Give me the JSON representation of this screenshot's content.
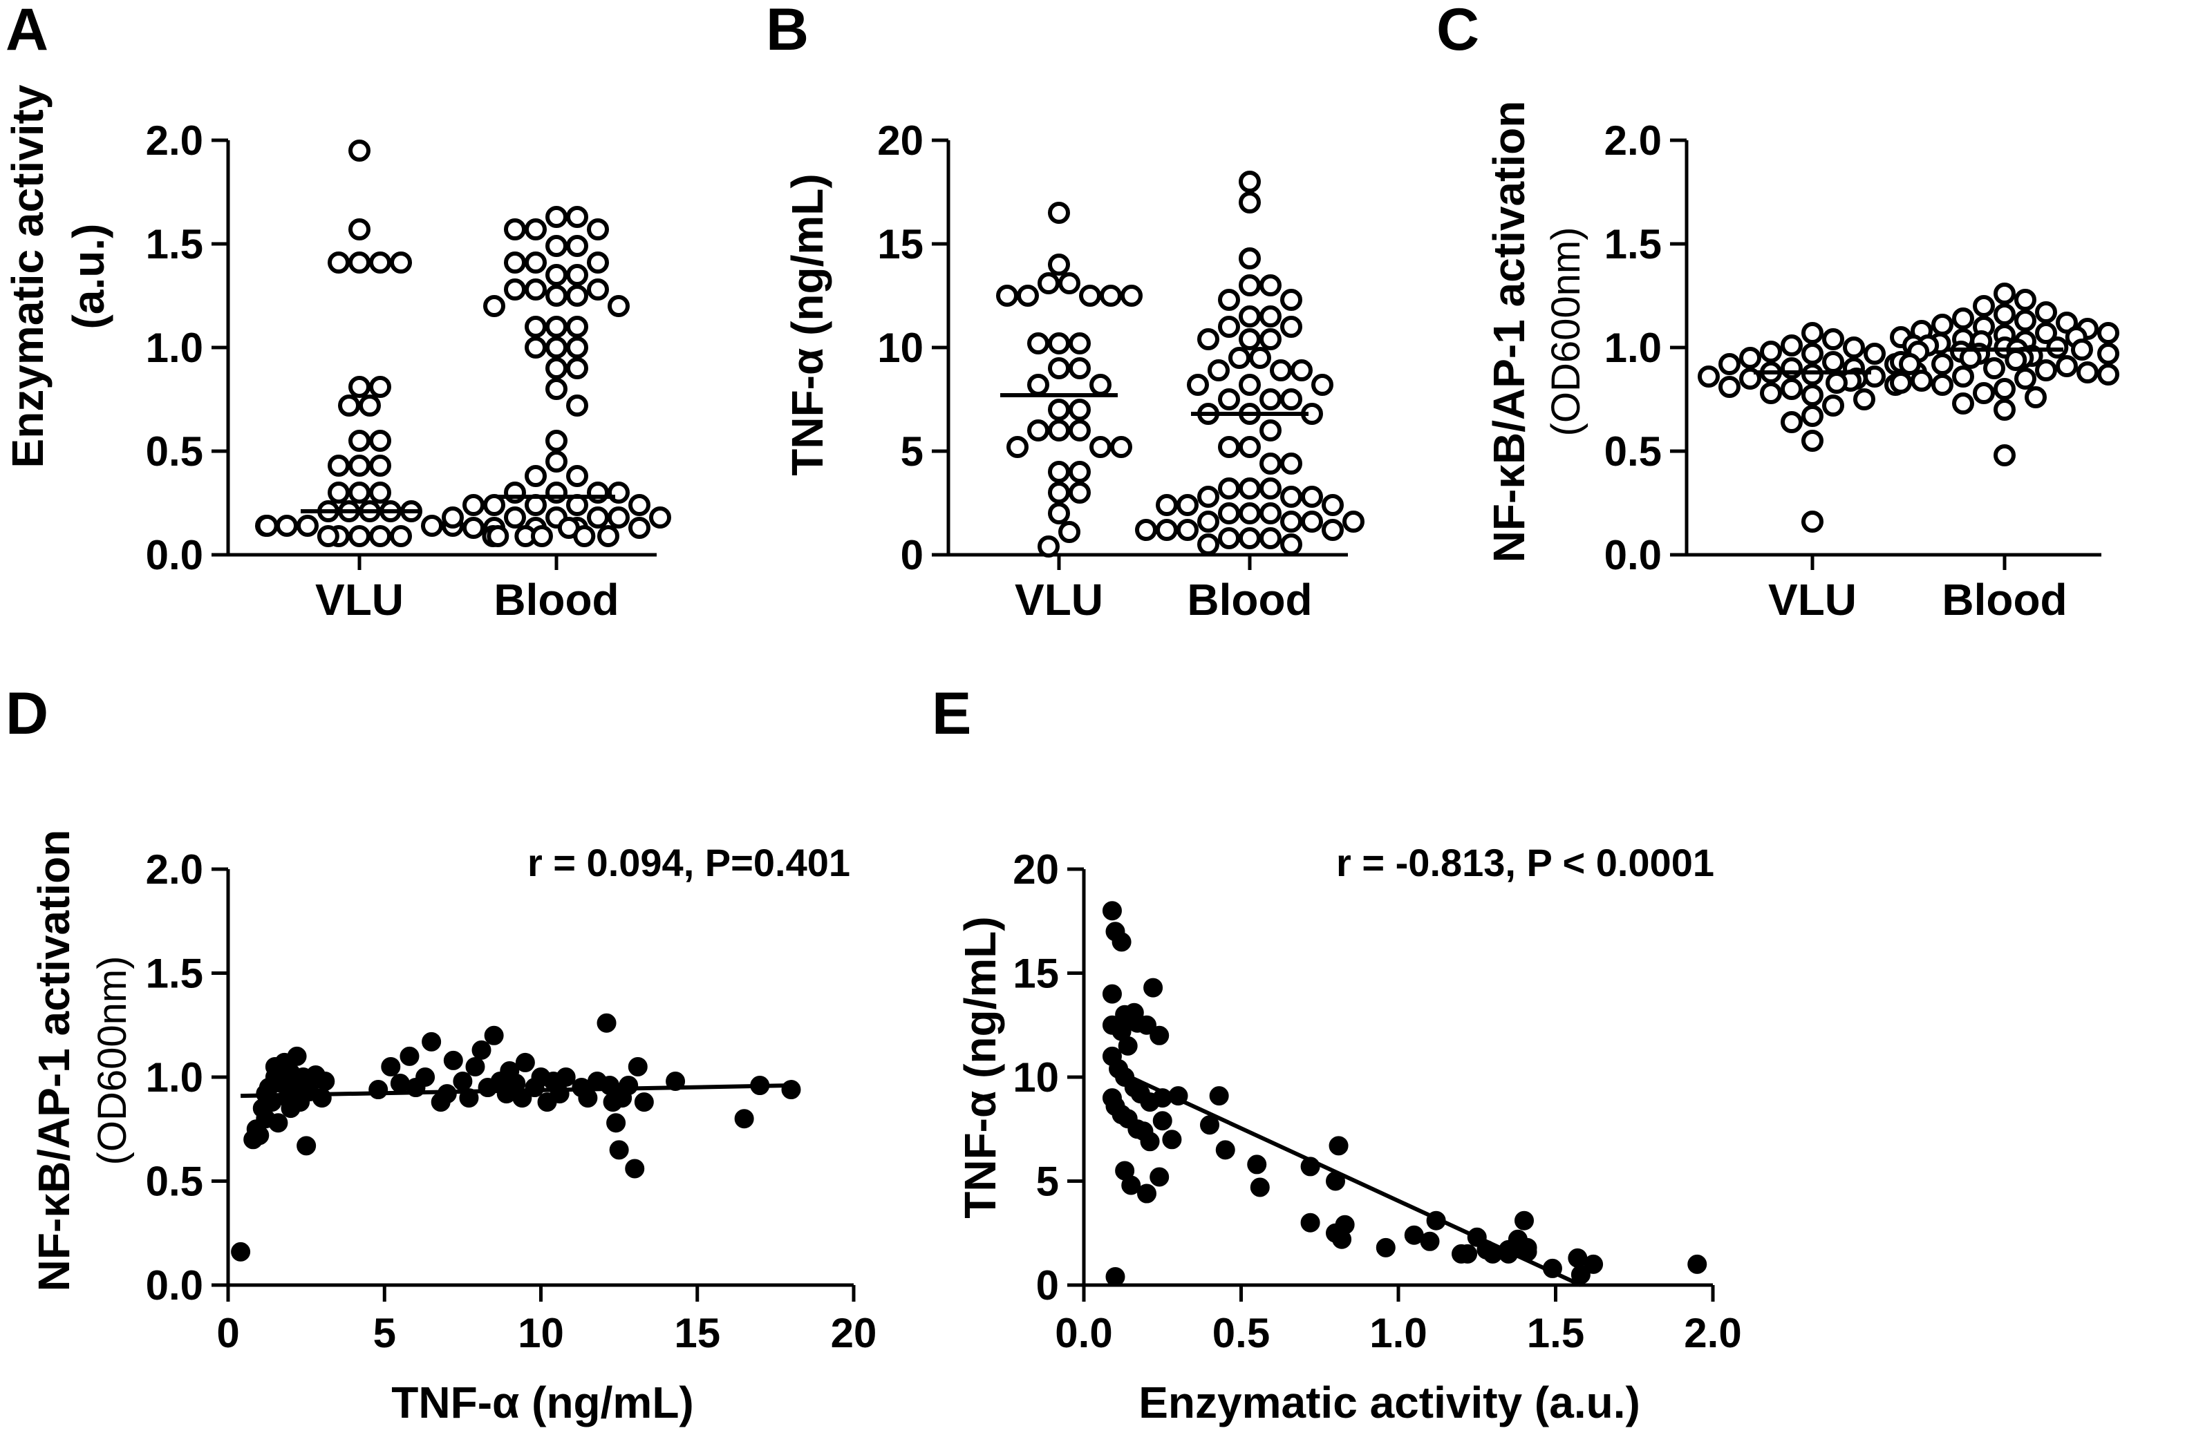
{
  "chart_data": [
    {
      "id": "A",
      "panel_label": "A",
      "type": "scatter",
      "categories": [
        "VLU",
        "Blood"
      ],
      "ylabel": "Enzymatic activity",
      "ylabel_sub": "(a.u.)",
      "ylim": [
        0,
        2.0
      ],
      "yticks": [
        0.0,
        0.5,
        1.0,
        1.5,
        2.0
      ],
      "ytick_labels": [
        "0.0",
        "0.5",
        "1.0",
        "1.5",
        "2.0"
      ],
      "medians": [
        0.21,
        0.28
      ],
      "series": [
        {
          "name": "VLU",
          "values": [
            1.95,
            1.57,
            1.41,
            1.41,
            1.41,
            1.41,
            0.81,
            0.81,
            0.72,
            0.72,
            0.55,
            0.55,
            0.43,
            0.43,
            0.43,
            0.3,
            0.3,
            0.3,
            0.21,
            0.21,
            0.21,
            0.21,
            0.21,
            0.14,
            0.14,
            0.14,
            0.14,
            0.14,
            0.14,
            0.09,
            0.09,
            0.09,
            0.09,
            0.09
          ]
        },
        {
          "name": "Blood",
          "values": [
            1.63,
            1.63,
            1.57,
            1.57,
            1.57,
            1.49,
            1.49,
            1.41,
            1.41,
            1.41,
            1.35,
            1.35,
            1.28,
            1.28,
            1.28,
            1.25,
            1.25,
            1.2,
            1.2,
            1.1,
            1.1,
            1.1,
            1.0,
            1.0,
            1.0,
            0.9,
            0.9,
            0.8,
            0.72,
            0.55,
            0.45,
            0.38,
            0.38,
            0.3,
            0.3,
            0.3,
            0.3,
            0.24,
            0.24,
            0.24,
            0.24,
            0.24,
            0.18,
            0.18,
            0.18,
            0.18,
            0.18,
            0.18,
            0.13,
            0.13,
            0.13,
            0.13,
            0.13,
            0.13,
            0.09,
            0.09,
            0.09,
            0.09,
            0.09,
            0.09
          ]
        }
      ]
    },
    {
      "id": "B",
      "panel_label": "B",
      "type": "scatter",
      "categories": [
        "VLU",
        "Blood"
      ],
      "ylabel": "TNF-α (ng/mL)",
      "ylim": [
        0,
        20
      ],
      "yticks": [
        0,
        5,
        10,
        15,
        20
      ],
      "ytick_labels": [
        "0",
        "5",
        "10",
        "15",
        "20"
      ],
      "medians": [
        7.7,
        6.8
      ],
      "series": [
        {
          "name": "VLU",
          "values": [
            16.5,
            14.0,
            13.1,
            13.1,
            12.5,
            12.5,
            12.5,
            12.5,
            12.5,
            10.2,
            10.2,
            10.2,
            9.0,
            9.0,
            8.2,
            8.2,
            7.0,
            7.0,
            6.0,
            6.0,
            6.0,
            5.2,
            5.2,
            5.2,
            4.0,
            4.0,
            3.0,
            3.0,
            2.0,
            1.1,
            0.4
          ]
        },
        {
          "name": "Blood",
          "values": [
            18.0,
            17.0,
            14.3,
            13.0,
            13.0,
            12.3,
            12.3,
            11.5,
            11.5,
            11.0,
            11.0,
            10.4,
            10.4,
            10.4,
            9.5,
            9.5,
            8.9,
            8.9,
            8.9,
            8.2,
            8.2,
            8.2,
            7.5,
            7.5,
            7.5,
            6.8,
            6.8,
            6.8,
            6.0,
            5.2,
            5.2,
            4.4,
            4.4,
            3.2,
            3.2,
            3.2,
            2.8,
            2.8,
            2.8,
            2.4,
            2.4,
            2.4,
            2.0,
            2.0,
            2.0,
            1.6,
            1.6,
            1.6,
            1.6,
            1.2,
            1.2,
            1.2,
            1.2,
            0.8,
            0.8,
            0.8,
            0.5,
            0.5
          ]
        }
      ]
    },
    {
      "id": "C",
      "panel_label": "C",
      "type": "scatter",
      "categories": [
        "VLU",
        "Blood"
      ],
      "ylabel": "NF-κB/AP-1 activation",
      "ylabel_sub": "(OD600nm)",
      "ylim": [
        0,
        2.0
      ],
      "yticks": [
        0.0,
        0.5,
        1.0,
        1.5,
        2.0
      ],
      "ytick_labels": [
        "0.0",
        "0.5",
        "1.0",
        "1.5",
        "2.0"
      ],
      "medians": [
        0.88,
        0.99
      ],
      "series": [
        {
          "name": "VLU",
          "values": [
            1.07,
            1.04,
            1.01,
            1.0,
            0.98,
            0.97,
            0.97,
            0.95,
            0.93,
            0.92,
            0.92,
            0.9,
            0.9,
            0.88,
            0.88,
            0.87,
            0.86,
            0.86,
            0.85,
            0.85,
            0.84,
            0.83,
            0.82,
            0.81,
            0.8,
            0.78,
            0.77,
            0.75,
            0.72,
            0.67,
            0.64,
            0.55,
            0.16
          ]
        },
        {
          "name": "Blood",
          "values": [
            1.26,
            1.23,
            1.2,
            1.17,
            1.16,
            1.14,
            1.13,
            1.12,
            1.11,
            1.1,
            1.09,
            1.08,
            1.07,
            1.07,
            1.06,
            1.05,
            1.05,
            1.04,
            1.03,
            1.03,
            1.02,
            1.01,
            1.01,
            1.0,
            1.0,
            0.99,
            0.99,
            0.98,
            0.98,
            0.97,
            0.97,
            0.96,
            0.95,
            0.95,
            0.94,
            0.93,
            0.92,
            0.92,
            0.91,
            0.9,
            0.89,
            0.88,
            0.87,
            0.86,
            0.85,
            0.84,
            0.83,
            0.82,
            0.8,
            0.78,
            0.76,
            0.73,
            0.7,
            0.48
          ]
        }
      ]
    },
    {
      "id": "D",
      "panel_label": "D",
      "type": "scatter",
      "xlabel": "TNF-α (ng/mL)",
      "ylabel": "NF-κB/AP-1 activation",
      "ylabel_sub": "(OD600nm)",
      "xlim": [
        0,
        20
      ],
      "ylim": [
        0,
        2.0
      ],
      "xticks": [
        0,
        5,
        10,
        15,
        20
      ],
      "xtick_labels": [
        "0",
        "5",
        "10",
        "15",
        "20"
      ],
      "yticks": [
        0.0,
        0.5,
        1.0,
        1.5,
        2.0
      ],
      "ytick_labels": [
        "0.0",
        "0.5",
        "1.0",
        "1.5",
        "2.0"
      ],
      "annotation": "r = 0.094, P=0.401",
      "fit": {
        "x": [
          0.4,
          18.0
        ],
        "y": [
          0.91,
          0.96
        ]
      },
      "points": [
        [
          0.4,
          0.16
        ],
        [
          0.8,
          0.7
        ],
        [
          0.9,
          0.75
        ],
        [
          1.0,
          0.72
        ],
        [
          1.1,
          0.85
        ],
        [
          1.2,
          0.8
        ],
        [
          1.2,
          0.92
        ],
        [
          1.3,
          0.95
        ],
        [
          1.4,
          0.88
        ],
        [
          1.5,
          1.0
        ],
        [
          1.5,
          1.05
        ],
        [
          1.6,
          0.78
        ],
        [
          1.7,
          0.97
        ],
        [
          1.8,
          1.07
        ],
        [
          1.9,
          0.9
        ],
        [
          2.0,
          0.85
        ],
        [
          2.0,
          1.02
        ],
        [
          2.1,
          0.95
        ],
        [
          2.2,
          1.1
        ],
        [
          2.3,
          0.88
        ],
        [
          2.4,
          1.0
        ],
        [
          2.5,
          0.67
        ],
        [
          2.6,
          0.93
        ],
        [
          2.8,
          1.01
        ],
        [
          3.0,
          0.9
        ],
        [
          3.1,
          0.98
        ],
        [
          4.8,
          0.94
        ],
        [
          5.2,
          1.05
        ],
        [
          5.5,
          0.97
        ],
        [
          5.8,
          1.1
        ],
        [
          6.0,
          0.95
        ],
        [
          6.3,
          1.0
        ],
        [
          6.5,
          1.17
        ],
        [
          6.8,
          0.88
        ],
        [
          7.0,
          0.92
        ],
        [
          7.2,
          1.08
        ],
        [
          7.5,
          0.98
        ],
        [
          7.7,
          0.9
        ],
        [
          7.9,
          1.05
        ],
        [
          8.1,
          1.13
        ],
        [
          8.3,
          0.95
        ],
        [
          8.5,
          1.2
        ],
        [
          8.7,
          0.98
        ],
        [
          8.9,
          0.92
        ],
        [
          9.0,
          1.03
        ],
        [
          9.2,
          0.97
        ],
        [
          9.4,
          0.9
        ],
        [
          9.5,
          1.07
        ],
        [
          9.8,
          0.95
        ],
        [
          10.0,
          1.0
        ],
        [
          10.2,
          0.88
        ],
        [
          10.4,
          0.98
        ],
        [
          10.6,
          0.92
        ],
        [
          10.8,
          1.0
        ],
        [
          11.3,
          0.95
        ],
        [
          11.5,
          0.9
        ],
        [
          11.8,
          0.98
        ],
        [
          12.1,
          1.26
        ],
        [
          12.2,
          0.96
        ],
        [
          12.3,
          0.88
        ],
        [
          12.4,
          0.78
        ],
        [
          12.5,
          0.65
        ],
        [
          12.6,
          0.9
        ],
        [
          12.8,
          0.96
        ],
        [
          13.0,
          0.56
        ],
        [
          13.1,
          1.05
        ],
        [
          13.3,
          0.88
        ],
        [
          14.3,
          0.98
        ],
        [
          16.5,
          0.8
        ],
        [
          17.0,
          0.96
        ],
        [
          18.0,
          0.94
        ]
      ]
    },
    {
      "id": "E",
      "panel_label": "E",
      "type": "scatter",
      "xlabel": "Enzymatic activity (a.u.)",
      "ylabel": "TNF-α (ng/mL)",
      "xlim": [
        0,
        2.0
      ],
      "ylim": [
        0,
        20
      ],
      "xticks": [
        0.0,
        0.5,
        1.0,
        1.5,
        2.0
      ],
      "xtick_labels": [
        "0.0",
        "0.5",
        "1.0",
        "1.5",
        "2.0"
      ],
      "yticks": [
        0,
        5,
        10,
        15,
        20
      ],
      "ytick_labels": [
        "0",
        "5",
        "10",
        "15",
        "20"
      ],
      "annotation": "r = -0.813, P < 0.0001",
      "fit": {
        "x": [
          0.09,
          1.58
        ],
        "y": [
          10.4,
          0.0
        ]
      },
      "points": [
        [
          0.09,
          18.0
        ],
        [
          0.1,
          17.0
        ],
        [
          0.12,
          16.5
        ],
        [
          0.09,
          14.0
        ],
        [
          0.13,
          13.0
        ],
        [
          0.16,
          13.1
        ],
        [
          0.2,
          12.5
        ],
        [
          0.22,
          14.3
        ],
        [
          0.09,
          12.5
        ],
        [
          0.12,
          12.2
        ],
        [
          0.14,
          11.5
        ],
        [
          0.17,
          12.6
        ],
        [
          0.24,
          12.0
        ],
        [
          0.09,
          11.0
        ],
        [
          0.11,
          10.4
        ],
        [
          0.13,
          10.0
        ],
        [
          0.16,
          9.5
        ],
        [
          0.09,
          9.0
        ],
        [
          0.1,
          8.6
        ],
        [
          0.12,
          8.2
        ],
        [
          0.14,
          8.0
        ],
        [
          0.17,
          7.5
        ],
        [
          0.18,
          9.2
        ],
        [
          0.21,
          8.8
        ],
        [
          0.25,
          9.0
        ],
        [
          0.3,
          9.1
        ],
        [
          0.19,
          7.4
        ],
        [
          0.21,
          6.9
        ],
        [
          0.25,
          7.9
        ],
        [
          0.28,
          7.0
        ],
        [
          0.13,
          5.5
        ],
        [
          0.15,
          4.8
        ],
        [
          0.2,
          4.4
        ],
        [
          0.24,
          5.2
        ],
        [
          0.4,
          7.7
        ],
        [
          0.43,
          9.1
        ],
        [
          0.45,
          6.5
        ],
        [
          0.55,
          5.8
        ],
        [
          0.56,
          4.7
        ],
        [
          0.1,
          0.4
        ],
        [
          0.72,
          5.7
        ],
        [
          0.81,
          6.7
        ],
        [
          0.72,
          3.0
        ],
        [
          0.8,
          5.0
        ],
        [
          0.8,
          2.5
        ],
        [
          0.82,
          2.2
        ],
        [
          0.83,
          2.9
        ],
        [
          0.96,
          1.8
        ],
        [
          1.05,
          2.4
        ],
        [
          1.1,
          2.1
        ],
        [
          1.12,
          3.1
        ],
        [
          1.2,
          1.5
        ],
        [
          1.22,
          1.5
        ],
        [
          1.25,
          2.3
        ],
        [
          1.28,
          1.7
        ],
        [
          1.3,
          1.5
        ],
        [
          1.35,
          1.5
        ],
        [
          1.35,
          1.7
        ],
        [
          1.38,
          2.2
        ],
        [
          1.4,
          3.1
        ],
        [
          1.41,
          1.8
        ],
        [
          1.41,
          1.6
        ],
        [
          1.49,
          0.8
        ],
        [
          1.57,
          1.3
        ],
        [
          1.58,
          0.5
        ],
        [
          1.62,
          1.0
        ],
        [
          1.95,
          1.0
        ]
      ]
    }
  ]
}
